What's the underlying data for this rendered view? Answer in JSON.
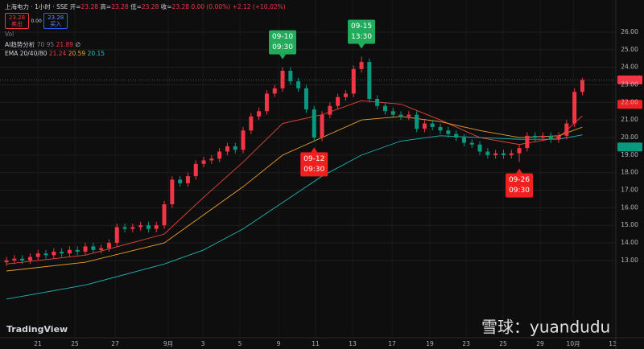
{
  "header": {
    "symbol": "上海电力 · 1小时 · SSE",
    "quote": [
      {
        "label": "开=",
        "value": "23.28"
      },
      {
        "label": "高=",
        "value": "23.28"
      },
      {
        "label": "低=",
        "value": "23.28"
      },
      {
        "label": "收=",
        "value": "23.28"
      }
    ],
    "change": "0.00 (0.00%) +2.12 (+10.02%)",
    "sell_price": "23.28",
    "sell": "卖出",
    "spread": "0.00",
    "buy_price": "23.28",
    "buy": "买入",
    "vol": "Vol"
  },
  "indicators": [
    {
      "name": "AI趋势分析",
      "params": "70 95",
      "values": [
        "21.89"
      ],
      "extra": "∅"
    },
    {
      "name": "EMA 20/40/80",
      "values": [
        "21.24",
        "20.59",
        "20.15"
      ]
    }
  ],
  "watermark": "TradingView",
  "credit": "雪球：yuandudu",
  "chart_data": {
    "type": "candlestick",
    "up_color": "#f23645",
    "down_color": "#089981",
    "grid": true,
    "open": [
      12.9,
      13.0,
      13.1,
      13.0,
      13.2,
      13.4,
      13.3,
      13.5,
      13.4,
      13.6,
      13.5,
      13.8,
      13.6,
      13.7,
      14.0,
      14.9,
      14.8,
      14.9,
      15.0,
      14.8,
      15.0,
      16.2,
      17.6,
      17.4,
      17.8,
      18.5,
      18.7,
      18.8,
      19.2,
      19.5,
      19.3,
      20.4,
      21.2,
      21.5,
      22.5,
      22.8,
      23.8,
      23.2,
      22.8,
      21.6,
      20.0,
      21.3,
      21.8,
      22.3,
      22.5,
      23.9,
      24.3,
      22.2,
      21.8,
      21.5,
      21.3,
      21.2,
      21.3,
      20.5,
      20.8,
      20.6,
      20.4,
      20.2,
      20.0,
      19.7,
      19.6,
      19.2,
      19.0,
      19.1,
      19.0,
      19.1,
      19.4,
      20.1,
      20.0,
      20.1,
      19.9,
      20.1,
      20.8,
      22.6
    ],
    "high": [
      13.2,
      13.3,
      13.3,
      13.4,
      13.6,
      13.6,
      13.7,
      13.7,
      13.8,
      13.8,
      14.0,
      14.0,
      13.9,
      14.2,
      15.1,
      15.1,
      15.1,
      15.2,
      15.2,
      15.2,
      16.4,
      17.8,
      17.8,
      18.0,
      18.7,
      18.9,
      19.0,
      19.4,
      19.7,
      19.7,
      20.6,
      21.4,
      21.7,
      22.7,
      23.0,
      24.0,
      24.0,
      23.4,
      23.0,
      21.8,
      21.5,
      22.0,
      22.5,
      22.7,
      24.1,
      24.6,
      24.5,
      22.4,
      22.0,
      21.7,
      21.5,
      21.5,
      21.5,
      21.0,
      21.0,
      20.8,
      20.6,
      20.4,
      20.2,
      19.9,
      19.8,
      19.4,
      19.3,
      19.3,
      19.3,
      19.6,
      20.3,
      20.3,
      20.3,
      20.3,
      20.3,
      21.0,
      22.8,
      23.4
    ],
    "low": [
      12.7,
      12.8,
      12.8,
      12.8,
      13.0,
      13.1,
      13.1,
      13.2,
      13.2,
      13.3,
      13.3,
      13.4,
      13.4,
      13.5,
      13.8,
      14.6,
      14.6,
      14.7,
      14.6,
      14.6,
      14.8,
      16.0,
      17.2,
      17.2,
      17.6,
      18.3,
      18.5,
      18.6,
      19.0,
      19.1,
      19.1,
      20.2,
      21.0,
      21.3,
      22.3,
      22.6,
      23.0,
      22.6,
      21.4,
      19.8,
      19.8,
      21.1,
      21.6,
      22.1,
      22.3,
      23.7,
      22.0,
      21.6,
      21.3,
      21.1,
      21.0,
      21.0,
      20.3,
      20.3,
      20.4,
      20.2,
      20.0,
      19.8,
      19.5,
      19.4,
      19.0,
      18.8,
      18.8,
      18.8,
      18.8,
      18.6,
      19.2,
      19.8,
      19.8,
      19.7,
      19.7,
      19.9,
      20.6,
      22.4
    ],
    "close": [
      13.0,
      13.1,
      13.0,
      13.2,
      13.4,
      13.3,
      13.5,
      13.4,
      13.6,
      13.5,
      13.8,
      13.6,
      13.7,
      14.0,
      14.9,
      14.8,
      14.9,
      15.0,
      14.8,
      15.0,
      16.2,
      17.6,
      17.4,
      17.8,
      18.5,
      18.7,
      18.8,
      19.2,
      19.5,
      19.3,
      20.4,
      21.2,
      21.5,
      22.5,
      22.8,
      23.8,
      23.2,
      22.8,
      21.6,
      20.0,
      21.3,
      21.8,
      22.3,
      22.5,
      23.9,
      24.3,
      22.2,
      21.8,
      21.5,
      21.3,
      21.2,
      21.3,
      20.5,
      20.8,
      20.6,
      20.4,
      20.2,
      20.0,
      19.7,
      19.6,
      19.2,
      19.0,
      19.1,
      19.0,
      19.1,
      19.4,
      20.1,
      20.0,
      20.1,
      19.9,
      20.1,
      20.8,
      22.6,
      23.28
    ],
    "series": [
      {
        "name": "EMA 20",
        "color": "#e8453c",
        "x": [
          0,
          10,
          20,
          25,
          30,
          35,
          40,
          45,
          50,
          55,
          60,
          65,
          70,
          73
        ],
        "values": [
          12.8,
          13.3,
          14.5,
          16.6,
          18.6,
          20.8,
          21.3,
          22.1,
          21.9,
          21.0,
          20.0,
          19.6,
          20.0,
          21.24
        ]
      },
      {
        "name": "EMA 40",
        "color": "#f0a030",
        "x": [
          0,
          10,
          20,
          25,
          30,
          35,
          40,
          45,
          50,
          55,
          60,
          65,
          70,
          73
        ],
        "values": [
          12.4,
          12.9,
          14.0,
          15.6,
          17.2,
          19.0,
          20.0,
          21.0,
          21.2,
          20.9,
          20.4,
          20.0,
          20.1,
          20.59
        ]
      },
      {
        "name": "EMA 80",
        "color": "#22b5b5",
        "x": [
          0,
          10,
          20,
          25,
          30,
          35,
          40,
          45,
          50,
          55,
          60,
          65,
          70,
          73
        ],
        "values": [
          10.8,
          11.6,
          12.8,
          13.6,
          14.8,
          16.3,
          17.8,
          19.0,
          19.8,
          20.1,
          20.0,
          19.9,
          19.9,
          20.15
        ]
      }
    ],
    "annotations": [
      {
        "lines": [
          "09-10",
          "09:30"
        ],
        "x": 35,
        "side": "above",
        "color": "#22ab5a"
      },
      {
        "lines": [
          "09-12",
          "09:30"
        ],
        "x": 39,
        "side": "below",
        "color": "#f21f1f"
      },
      {
        "lines": [
          "09-15",
          "13:30"
        ],
        "x": 45,
        "side": "above",
        "color": "#22ab5a"
      },
      {
        "lines": [
          "09-26",
          "09:30"
        ],
        "x": 65,
        "side": "below",
        "color": "#f21f1f"
      }
    ],
    "price_badges": [
      {
        "value": 23.28,
        "label": "23.28",
        "color": "#f23645"
      },
      {
        "value": 21.89,
        "label": "21.89",
        "color": "#f21f1f"
      },
      {
        "value": 19.46,
        "label": "19.46",
        "color": "#089981"
      }
    ],
    "xlim": [
      -0.82,
      77.24
    ],
    "ylim": [
      8.6,
      27.83
    ],
    "xticks": [
      {
        "value": 3.98,
        "label": "21"
      },
      {
        "value": 8.67,
        "label": "25"
      },
      {
        "value": 13.78,
        "label": "27"
      },
      {
        "value": 20.51,
        "label": "9月"
      },
      {
        "value": 24.9,
        "label": "3"
      },
      {
        "value": 29.59,
        "label": "5"
      },
      {
        "value": 34.49,
        "label": "9"
      },
      {
        "value": 39.18,
        "label": "11"
      },
      {
        "value": 43.88,
        "label": "13"
      },
      {
        "value": 48.88,
        "label": "17"
      },
      {
        "value": 53.67,
        "label": "19"
      },
      {
        "value": 58.27,
        "label": "23"
      },
      {
        "value": 62.96,
        "label": "25"
      },
      {
        "value": 67.65,
        "label": "29"
      },
      {
        "value": 71.84,
        "label": "10月"
      },
      {
        "value": 76.84,
        "label": "13"
      }
    ],
    "yticks": [
      {
        "value": 13,
        "label": "13.00"
      },
      {
        "value": 14,
        "label": "14.00"
      },
      {
        "value": 15,
        "label": "15.00"
      },
      {
        "value": 16,
        "label": "16.00"
      },
      {
        "value": 17,
        "label": "17.00"
      },
      {
        "value": 18,
        "label": "18.00"
      },
      {
        "value": 19,
        "label": "19.00"
      },
      {
        "value": 20,
        "label": "20.00"
      },
      {
        "value": 21,
        "label": "21.00"
      },
      {
        "value": 22,
        "label": "22.00"
      },
      {
        "value": 23,
        "label": "23.00"
      },
      {
        "value": 24,
        "label": "24.00"
      },
      {
        "value": 25,
        "label": "25.00"
      },
      {
        "value": 26,
        "label": "26.00"
      }
    ]
  }
}
